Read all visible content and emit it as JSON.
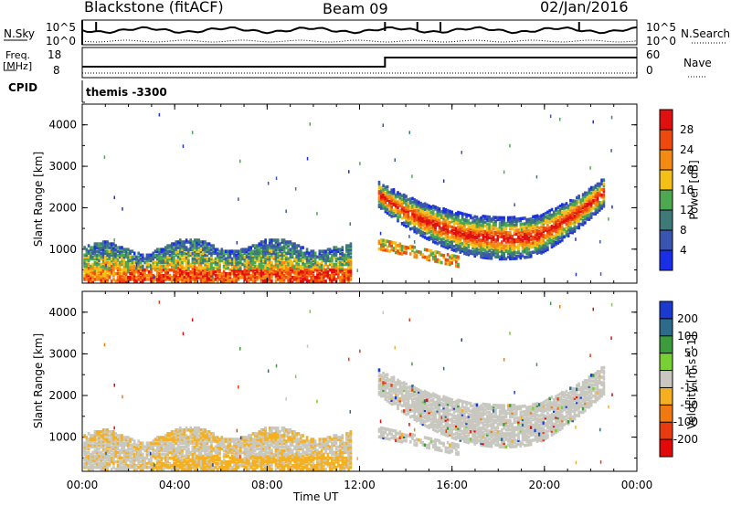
{
  "header": {
    "radar": "Blackstone (fitACF)",
    "beam": "Beam 09",
    "date": "02/Jan/2016"
  },
  "noise_panel": {
    "left_label": "N.Sky",
    "right_label": "N.Search",
    "ticks_left": [
      "10^5",
      "10^0"
    ],
    "ticks_right": [
      "10^5",
      "10^0"
    ]
  },
  "freq_panel": {
    "left_label_line1": "Freq.",
    "left_label_line2": "[MHz]",
    "right_label": "Nave",
    "ticks_left": [
      "18",
      "8"
    ],
    "ticks_right": [
      "60",
      "0"
    ]
  },
  "cpid_panel": {
    "label": "CPID",
    "mode_text": "themis -3300"
  },
  "time_axis": {
    "label": "Time UT",
    "ticks": [
      "00:00",
      "04:00",
      "08:00",
      "12:00",
      "16:00",
      "20:00",
      "00:00"
    ]
  },
  "power_colorbar": {
    "label": "Power [dB]",
    "ticks": [
      "4",
      "8",
      "12",
      "16",
      "20",
      "24",
      "28"
    ],
    "colors": [
      "#1a2ee6",
      "#3a55b0",
      "#3d7a78",
      "#4da850",
      "#f4c018",
      "#f48a12",
      "#ee4a0e",
      "#e01010"
    ]
  },
  "velocity_colorbar": {
    "label": "Velocity [m s^-1]",
    "ticks": [
      "200",
      "100",
      "50",
      "15",
      "-15",
      "-50",
      "-100",
      "-200"
    ],
    "colors": [
      "#1a3ad0",
      "#2e6a8a",
      "#3c9c3c",
      "#78d034",
      "#c8c8c0",
      "#f4b020",
      "#f07a10",
      "#e83c10",
      "#e00a0a"
    ]
  },
  "chart_data": [
    {
      "type": "heatmap",
      "title": "Power",
      "xlabel": "Time UT",
      "ylabel": "Slant Range [km]",
      "xlim": [
        0,
        24
      ],
      "ylim": [
        180,
        4500
      ],
      "y_ticks": [
        "1000",
        "2000",
        "3000",
        "4000"
      ],
      "color_label": "Power [dB]",
      "color_range": [
        0,
        32
      ],
      "regions": [
        {
          "t0": 0.0,
          "t1": 11.5,
          "r0": 180,
          "r1": 1150,
          "level": "mixed",
          "note": "ground/near scatter"
        },
        {
          "t0": 12.8,
          "t1": 22.5,
          "r0": 600,
          "r1": 2500,
          "level": "strong-arc"
        }
      ]
    },
    {
      "type": "heatmap",
      "title": "Velocity",
      "xlabel": "Time UT",
      "ylabel": "Slant Range [km]",
      "xlim": [
        0,
        24
      ],
      "ylim": [
        180,
        4500
      ],
      "y_ticks": [
        "1000",
        "2000",
        "3000",
        "4000"
      ],
      "color_label": "Velocity [m s^-1]",
      "color_range": [
        -200,
        200
      ]
    }
  ]
}
